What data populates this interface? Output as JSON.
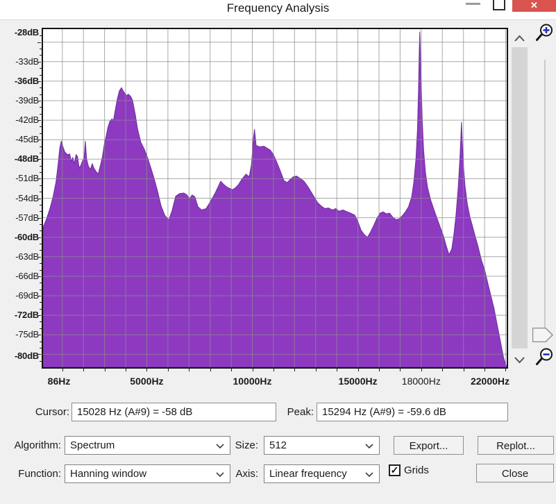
{
  "window": {
    "title": "Frequency Analysis",
    "close_glyph": "✕"
  },
  "chart_data": {
    "type": "area",
    "title": "Frequency Analysis spectrum plot",
    "grid": true,
    "series_color": "#8d3ac1",
    "series_edge_color": "#6e2ba0",
    "grid_color": "rgba(140,140,140,0.75)",
    "x_axis": {
      "unit": "Hz",
      "scale": "linear",
      "min": 86,
      "max": 22050,
      "grid_step": 1000,
      "labels": [
        {
          "value": 86,
          "text": "86Hz",
          "bold": true
        },
        {
          "value": 5000,
          "text": "5000Hz",
          "bold": true
        },
        {
          "value": 10000,
          "text": "10000Hz",
          "bold": true
        },
        {
          "value": 15000,
          "text": "15000Hz",
          "bold": true
        },
        {
          "value": 18000,
          "text": "18000Hz",
          "bold": false
        },
        {
          "value": 22000,
          "text": "22000Hz",
          "bold": true
        }
      ]
    },
    "y_axis": {
      "unit": "dB",
      "min": -80,
      "max": -28,
      "grid_step": 3,
      "minor_tick_step": 1,
      "labels": [
        {
          "value": -28,
          "text": "-28dB",
          "bold": true
        },
        {
          "value": -33,
          "text": "-33dB",
          "bold": false
        },
        {
          "value": -36,
          "text": "-36dB",
          "bold": true
        },
        {
          "value": -39,
          "text": "-39dB",
          "bold": false
        },
        {
          "value": -42,
          "text": "-42dB",
          "bold": false
        },
        {
          "value": -45,
          "text": "-45dB",
          "bold": false
        },
        {
          "value": -48,
          "text": "-48dB",
          "bold": true
        },
        {
          "value": -51,
          "text": "-51dB",
          "bold": false
        },
        {
          "value": -54,
          "text": "-54dB",
          "bold": false
        },
        {
          "value": -57,
          "text": "-57dB",
          "bold": false
        },
        {
          "value": -60,
          "text": "-60dB",
          "bold": true
        },
        {
          "value": -63,
          "text": "-63dB",
          "bold": false
        },
        {
          "value": -66,
          "text": "-66dB",
          "bold": false
        },
        {
          "value": -69,
          "text": "-69dB",
          "bold": false
        },
        {
          "value": -72,
          "text": "-72dB",
          "bold": true
        },
        {
          "value": -75,
          "text": "-75dB",
          "bold": false
        },
        {
          "value": -80,
          "text": "-80dB",
          "bold": true
        }
      ]
    },
    "points": [
      [
        86,
        -58.5
      ],
      [
        250,
        -57.2
      ],
      [
        420,
        -55.5
      ],
      [
        560,
        -53.8
      ],
      [
        700,
        -51.5
      ],
      [
        800,
        -48.8
      ],
      [
        880,
        -46.3
      ],
      [
        950,
        -45.2
      ],
      [
        1030,
        -46.1
      ],
      [
        1120,
        -46.9
      ],
      [
        1250,
        -47.3
      ],
      [
        1350,
        -47.2
      ],
      [
        1430,
        -48.4
      ],
      [
        1490,
        -47.7
      ],
      [
        1560,
        -48.7
      ],
      [
        1650,
        -47.3
      ],
      [
        1720,
        -47.6
      ],
      [
        1800,
        -49.4
      ],
      [
        1880,
        -48.9
      ],
      [
        1950,
        -48.3
      ],
      [
        2030,
        -47.9
      ],
      [
        2090,
        -45.2
      ],
      [
        2150,
        -48.0
      ],
      [
        2230,
        -49.0
      ],
      [
        2320,
        -49.6
      ],
      [
        2420,
        -48.7
      ],
      [
        2500,
        -49.4
      ],
      [
        2600,
        -49.9
      ],
      [
        2700,
        -50.3
      ],
      [
        2800,
        -49.0
      ],
      [
        2900,
        -47.6
      ],
      [
        3000,
        -45.5
      ],
      [
        3080,
        -44.4
      ],
      [
        3150,
        -43.2
      ],
      [
        3250,
        -42.2
      ],
      [
        3350,
        -41.8
      ],
      [
        3420,
        -42.1
      ],
      [
        3500,
        -40.6
      ],
      [
        3600,
        -38.8
      ],
      [
        3700,
        -37.5
      ],
      [
        3800,
        -37.0
      ],
      [
        3900,
        -37.6
      ],
      [
        4030,
        -38.2
      ],
      [
        4130,
        -38.0
      ],
      [
        4230,
        -38.3
      ],
      [
        4320,
        -38.9
      ],
      [
        4460,
        -41.2
      ],
      [
        4560,
        -43.3
      ],
      [
        4720,
        -45.4
      ],
      [
        4890,
        -46.5
      ],
      [
        5050,
        -47.9
      ],
      [
        5220,
        -49.6
      ],
      [
        5350,
        -51.0
      ],
      [
        5500,
        -52.8
      ],
      [
        5680,
        -55.2
      ],
      [
        5850,
        -56.6
      ],
      [
        6040,
        -57.4
      ],
      [
        6200,
        -55.9
      ],
      [
        6370,
        -53.7
      ],
      [
        6550,
        -53.3
      ],
      [
        6750,
        -53.2
      ],
      [
        6900,
        -53.5
      ],
      [
        7020,
        -54.1
      ],
      [
        7150,
        -53.5
      ],
      [
        7280,
        -53.8
      ],
      [
        7420,
        -55.3
      ],
      [
        7600,
        -55.8
      ],
      [
        7810,
        -55.6
      ],
      [
        8000,
        -54.6
      ],
      [
        8240,
        -53.2
      ],
      [
        8400,
        -52.1
      ],
      [
        8500,
        -51.4
      ],
      [
        8650,
        -51.9
      ],
      [
        8800,
        -52.3
      ],
      [
        9060,
        -52.7
      ],
      [
        9200,
        -52.4
      ],
      [
        9350,
        -51.9
      ],
      [
        9500,
        -51.1
      ],
      [
        9700,
        -50.3
      ],
      [
        9850,
        -50.7
      ],
      [
        9960,
        -48.8
      ],
      [
        10050,
        -44.8
      ],
      [
        10100,
        -43.4
      ],
      [
        10180,
        -45.9
      ],
      [
        10350,
        -46.1
      ],
      [
        10550,
        -46.0
      ],
      [
        10700,
        -46.3
      ],
      [
        10850,
        -46.6
      ],
      [
        11000,
        -47.3
      ],
      [
        11150,
        -48.4
      ],
      [
        11300,
        -49.6
      ],
      [
        11500,
        -51.3
      ],
      [
        11650,
        -51.6
      ],
      [
        11800,
        -51.1
      ],
      [
        11950,
        -50.7
      ],
      [
        12100,
        -50.6
      ],
      [
        12250,
        -50.9
      ],
      [
        12450,
        -51.4
      ],
      [
        12650,
        -52.3
      ],
      [
        12850,
        -53.4
      ],
      [
        13100,
        -54.7
      ],
      [
        13300,
        -55.3
      ],
      [
        13450,
        -55.6
      ],
      [
        13600,
        -55.5
      ],
      [
        13800,
        -55.8
      ],
      [
        13950,
        -55.6
      ],
      [
        14100,
        -56.0
      ],
      [
        14300,
        -55.8
      ],
      [
        14500,
        -56.1
      ],
      [
        14650,
        -56.3
      ],
      [
        14850,
        -56.6
      ],
      [
        15000,
        -57.6
      ],
      [
        15150,
        -58.9
      ],
      [
        15300,
        -59.6
      ],
      [
        15450,
        -60.0
      ],
      [
        15600,
        -59.2
      ],
      [
        15750,
        -58.2
      ],
      [
        15900,
        -57.1
      ],
      [
        16050,
        -56.3
      ],
      [
        16200,
        -56.1
      ],
      [
        16350,
        -56.4
      ],
      [
        16500,
        -56.3
      ],
      [
        16650,
        -56.9
      ],
      [
        16800,
        -57.3
      ],
      [
        16950,
        -57.2
      ],
      [
        17100,
        -56.7
      ],
      [
        17250,
        -56.1
      ],
      [
        17400,
        -55.3
      ],
      [
        17550,
        -53.8
      ],
      [
        17650,
        -51.5
      ],
      [
        17750,
        -48.0
      ],
      [
        17820,
        -43.5
      ],
      [
        17870,
        -37.5
      ],
      [
        17900,
        -32.5
      ],
      [
        17930,
        -28.4
      ],
      [
        17960,
        -31.5
      ],
      [
        18000,
        -36.5
      ],
      [
        18050,
        -42.0
      ],
      [
        18110,
        -46.5
      ],
      [
        18200,
        -50.0
      ],
      [
        18300,
        -52.3
      ],
      [
        18450,
        -54.3
      ],
      [
        18650,
        -56.2
      ],
      [
        18850,
        -58.0
      ],
      [
        19050,
        -59.8
      ],
      [
        19200,
        -61.5
      ],
      [
        19320,
        -62.7
      ],
      [
        19450,
        -61.8
      ],
      [
        19550,
        -59.5
      ],
      [
        19650,
        -56.5
      ],
      [
        19750,
        -52.5
      ],
      [
        19830,
        -48.0
      ],
      [
        19880,
        -44.5
      ],
      [
        19910,
        -42.3
      ],
      [
        19950,
        -45.5
      ],
      [
        20000,
        -49.0
      ],
      [
        20070,
        -52.0
      ],
      [
        20180,
        -54.8
      ],
      [
        20300,
        -56.8
      ],
      [
        20420,
        -58.2
      ],
      [
        20550,
        -59.8
      ],
      [
        20700,
        -61.5
      ],
      [
        20850,
        -63.5
      ],
      [
        21000,
        -65.0
      ],
      [
        21150,
        -67.0
      ],
      [
        21300,
        -69.0
      ],
      [
        21450,
        -71.0
      ],
      [
        21600,
        -73.5
      ],
      [
        21750,
        -76.0
      ],
      [
        21900,
        -78.5
      ],
      [
        22050,
        -80.0
      ]
    ]
  },
  "readouts": {
    "cursor_label": "Cursor:",
    "cursor_value": "15028 Hz (A#9) = -58 dB",
    "peak_label": "Peak:",
    "peak_value": "15294 Hz (A#9) = -59.6 dB"
  },
  "controls": {
    "algorithm": {
      "label": "Algorithm:",
      "value": "Spectrum"
    },
    "size": {
      "label": "Size:",
      "value": "512"
    },
    "function": {
      "label": "Function:",
      "value": "Hanning window"
    },
    "axis": {
      "label": "Axis:",
      "value": "Linear frequency"
    },
    "grids": {
      "label": "Grids",
      "checked": true,
      "check_glyph": "✓"
    },
    "export_button": "Export...",
    "replot_button": "Replot...",
    "close_button": "Close"
  },
  "colors": {
    "close_button_red": "#d9544e",
    "dialog_background": "#f0f0f0",
    "spectrum_purple": "#8d3ac1"
  }
}
